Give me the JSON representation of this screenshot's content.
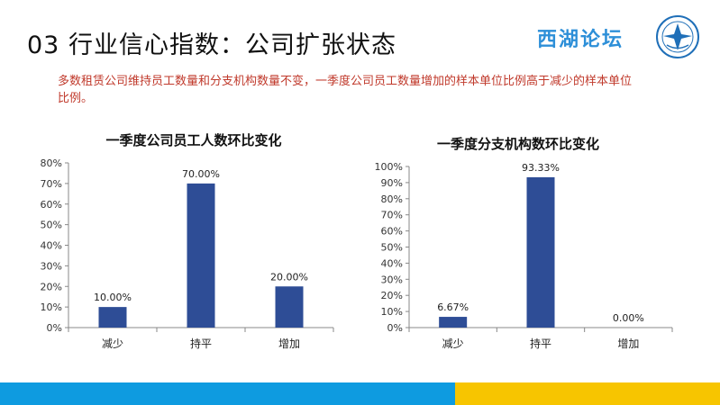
{
  "header": {
    "title": "03 行业信心指数：公司扩张状态",
    "logo_text": "西湖论坛"
  },
  "summary": "多数租赁公司维持员工数量和分支机构数量不变，一季度公司员工数量增加的样本单位比例高于减少的样本单位比例。",
  "colors": {
    "bar": "#2e4d96",
    "footer_blue": "#0e9be0",
    "footer_yellow": "#f7c500",
    "summary_text": "#c0392b"
  },
  "chart_data": [
    {
      "type": "bar",
      "title": "一季度公司员工人数环比变化",
      "categories": [
        "减少",
        "持平",
        "增加"
      ],
      "values": [
        10.0,
        70.0,
        20.0
      ],
      "data_labels": [
        "10.00%",
        "70.00%",
        "20.00%"
      ],
      "ylim": [
        0,
        80
      ],
      "yticks": [
        0,
        10,
        20,
        30,
        40,
        50,
        60,
        70,
        80
      ],
      "ytick_labels": [
        "0%",
        "10%",
        "20%",
        "30%",
        "40%",
        "50%",
        "60%",
        "70%",
        "80%"
      ],
      "xlabel": "",
      "ylabel": "",
      "grid": false,
      "legend": "none"
    },
    {
      "type": "bar",
      "title": "一季度分支机构数环比变化",
      "categories": [
        "减少",
        "持平",
        "增加"
      ],
      "values": [
        6.67,
        93.33,
        0.0
      ],
      "data_labels": [
        "6.67%",
        "93.33%",
        "0.00%"
      ],
      "ylim": [
        0,
        100
      ],
      "yticks": [
        0,
        10,
        20,
        30,
        40,
        50,
        60,
        70,
        80,
        90,
        100
      ],
      "ytick_labels": [
        "0%",
        "10%",
        "20%",
        "30%",
        "40%",
        "50%",
        "60%",
        "70%",
        "80%",
        "90%",
        "100%"
      ],
      "xlabel": "",
      "ylabel": "",
      "grid": false,
      "legend": "none"
    }
  ]
}
